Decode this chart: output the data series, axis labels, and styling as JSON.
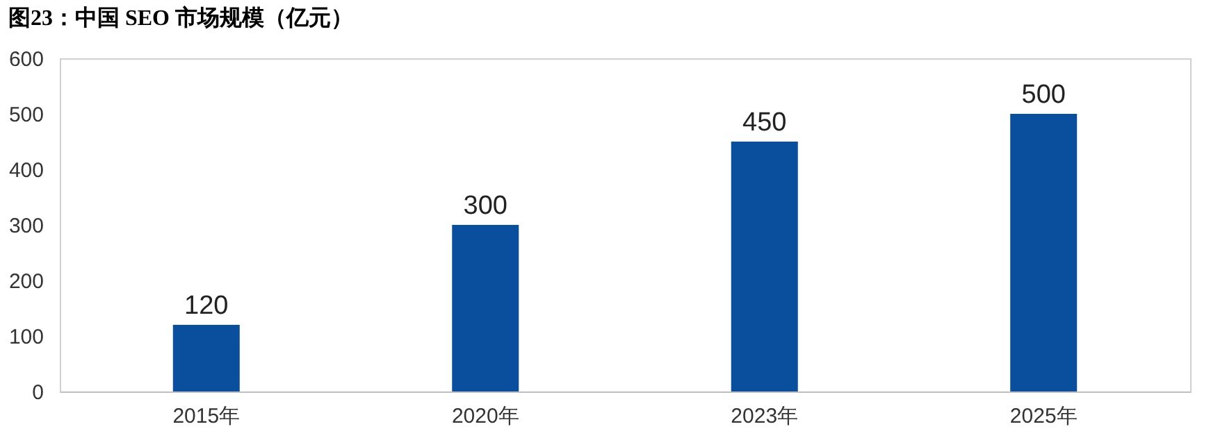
{
  "chart_data": {
    "type": "bar",
    "title": "图23：中国 SEO 市场规模（亿元）",
    "categories": [
      "2015年",
      "2020年",
      "2023年",
      "2025年"
    ],
    "values": [
      120,
      300,
      450,
      500
    ],
    "color": "#0a4f9e",
    "ylim": [
      0,
      600
    ],
    "yticks": [
      0,
      100,
      200,
      300,
      400,
      500,
      600
    ],
    "grid": false,
    "data_labels": true
  }
}
